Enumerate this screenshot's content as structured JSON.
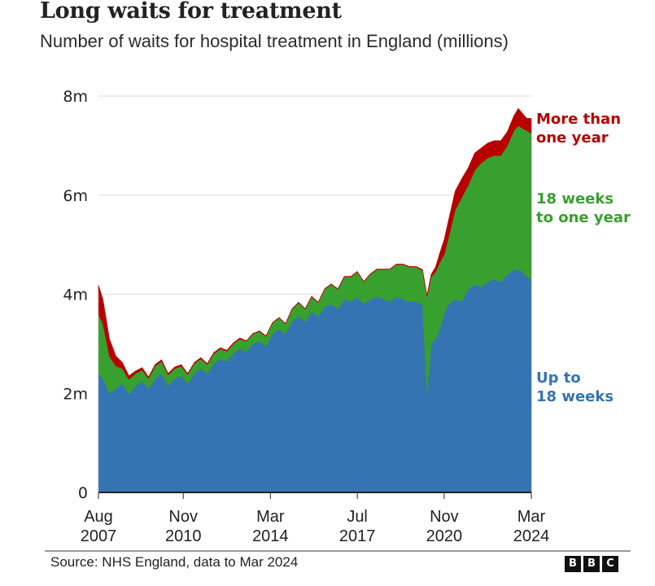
{
  "header": {
    "title": "Long waits for treatment",
    "subtitle": "Number of waits for hospital treatment in England (millions)"
  },
  "footer": {
    "source": "Source: NHS England, data to Mar 2024",
    "logo_letters": [
      "B",
      "B",
      "C"
    ]
  },
  "chart_data": {
    "type": "area",
    "stacked": true,
    "title": "Long waits for treatment",
    "subtitle": "Number of waits for hospital treatment in England (millions)",
    "xlabel": "",
    "ylabel": "",
    "ylim": [
      0,
      8
    ],
    "xlim": [
      2007.58,
      2024.17
    ],
    "grid": true,
    "yticks": [
      {
        "value": 0,
        "label": "0"
      },
      {
        "value": 2,
        "label": "2m"
      },
      {
        "value": 4,
        "label": "4m"
      },
      {
        "value": 6,
        "label": "6m"
      },
      {
        "value": 8,
        "label": "8m"
      }
    ],
    "xticks": [
      {
        "value": 2007.58,
        "label": [
          "Aug",
          "2007"
        ]
      },
      {
        "value": 2010.83,
        "label": [
          "Nov",
          "2010"
        ]
      },
      {
        "value": 2014.17,
        "label": [
          "Mar",
          "2014"
        ]
      },
      {
        "value": 2017.5,
        "label": [
          "Jul",
          "2017"
        ]
      },
      {
        "value": 2020.83,
        "label": [
          "Nov",
          "2020"
        ]
      },
      {
        "value": 2024.17,
        "label": [
          "Mar",
          "2024"
        ]
      }
    ],
    "x": [
      2007.58,
      2007.75,
      2008.0,
      2008.25,
      2008.5,
      2008.75,
      2009.0,
      2009.25,
      2009.5,
      2009.75,
      2010.0,
      2010.25,
      2010.5,
      2010.75,
      2011.0,
      2011.25,
      2011.5,
      2011.75,
      2012.0,
      2012.25,
      2012.5,
      2012.75,
      2013.0,
      2013.25,
      2013.5,
      2013.75,
      2014.0,
      2014.25,
      2014.5,
      2014.75,
      2015.0,
      2015.25,
      2015.5,
      2015.75,
      2016.0,
      2016.25,
      2016.5,
      2016.75,
      2017.0,
      2017.25,
      2017.5,
      2017.75,
      2018.0,
      2018.25,
      2018.5,
      2018.75,
      2019.0,
      2019.25,
      2019.5,
      2019.75,
      2020.0,
      2020.17,
      2020.33,
      2020.5,
      2020.67,
      2020.83,
      2021.0,
      2021.25,
      2021.5,
      2021.75,
      2022.0,
      2022.25,
      2022.5,
      2022.75,
      2023.0,
      2023.25,
      2023.5,
      2023.67,
      2023.83,
      2024.0,
      2024.17
    ],
    "series": [
      {
        "name": "Up to 18 weeks",
        "color": "#3574b2",
        "values": [
          2.4,
          2.3,
          2.0,
          2.1,
          2.2,
          1.98,
          2.15,
          2.25,
          2.1,
          2.3,
          2.4,
          2.15,
          2.3,
          2.35,
          2.2,
          2.4,
          2.5,
          2.4,
          2.6,
          2.7,
          2.65,
          2.8,
          2.9,
          2.85,
          3.0,
          3.05,
          2.95,
          3.2,
          3.3,
          3.2,
          3.45,
          3.55,
          3.45,
          3.65,
          3.55,
          3.75,
          3.8,
          3.7,
          3.9,
          3.85,
          3.95,
          3.8,
          3.9,
          3.95,
          3.9,
          3.85,
          3.95,
          3.9,
          3.85,
          3.85,
          3.8,
          2.0,
          3.0,
          3.1,
          3.3,
          3.6,
          3.8,
          3.9,
          3.85,
          4.1,
          4.2,
          4.15,
          4.25,
          4.3,
          4.25,
          4.4,
          4.5,
          4.5,
          4.45,
          4.35,
          4.3
        ]
      },
      {
        "name": "18 weeks to one year",
        "color": "#38a02e",
        "values": [
          1.2,
          1.1,
          0.75,
          0.45,
          0.3,
          0.3,
          0.25,
          0.22,
          0.2,
          0.25,
          0.25,
          0.22,
          0.2,
          0.2,
          0.18,
          0.2,
          0.2,
          0.18,
          0.2,
          0.2,
          0.2,
          0.2,
          0.2,
          0.2,
          0.2,
          0.2,
          0.2,
          0.22,
          0.22,
          0.2,
          0.25,
          0.28,
          0.25,
          0.3,
          0.28,
          0.35,
          0.4,
          0.4,
          0.45,
          0.5,
          0.5,
          0.45,
          0.5,
          0.55,
          0.6,
          0.65,
          0.65,
          0.7,
          0.7,
          0.7,
          0.68,
          1.95,
          1.35,
          1.35,
          1.35,
          1.2,
          1.35,
          1.8,
          2.1,
          2.1,
          2.3,
          2.5,
          2.5,
          2.5,
          2.55,
          2.6,
          2.8,
          2.9,
          2.9,
          2.95,
          2.95
        ]
      },
      {
        "name": "More than one year",
        "color": "#b80000",
        "values": [
          0.58,
          0.5,
          0.35,
          0.2,
          0.12,
          0.07,
          0.05,
          0.05,
          0.03,
          0.03,
          0.03,
          0.03,
          0.03,
          0.03,
          0.02,
          0.02,
          0.02,
          0.02,
          0.02,
          0.02,
          0.02,
          0.02,
          0.02,
          0.01,
          0.01,
          0.01,
          0.01,
          0.01,
          0.01,
          0.01,
          0.01,
          0.01,
          0.01,
          0.01,
          0.01,
          0.01,
          0.01,
          0.01,
          0.01,
          0.01,
          0.01,
          0.01,
          0.01,
          0.01,
          0.01,
          0.01,
          0.01,
          0.01,
          0.01,
          0.01,
          0.02,
          0.03,
          0.05,
          0.1,
          0.2,
          0.3,
          0.35,
          0.38,
          0.38,
          0.35,
          0.35,
          0.3,
          0.3,
          0.3,
          0.3,
          0.28,
          0.3,
          0.35,
          0.3,
          0.25,
          0.3
        ]
      }
    ],
    "legend": {
      "placement": "right-inline",
      "entries": [
        {
          "name": "More than one year",
          "lines": [
            "More than",
            "one year"
          ],
          "color": "#b80000"
        },
        {
          "name": "18 weeks to one year",
          "lines": [
            "18 weeks",
            "to one year"
          ],
          "color": "#38a02e"
        },
        {
          "name": "Up to 18 weeks",
          "lines": [
            "Up to",
            "18 weeks"
          ],
          "color": "#3574b2"
        }
      ]
    }
  }
}
